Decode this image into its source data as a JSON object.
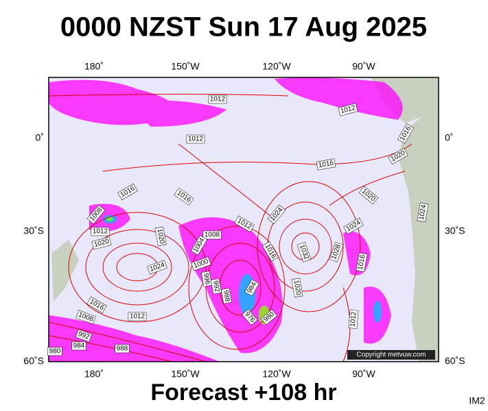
{
  "header": {
    "title": "0000 NZST Sun 17 Aug 2025"
  },
  "footer": {
    "forecast": "Forecast +108 hr",
    "image_id": "IM2"
  },
  "map": {
    "top_longitudes": [
      "180˚",
      "150˚W",
      "120˚W",
      "90˚W"
    ],
    "bottom_longitudes": [
      "180˚",
      "150˚W",
      "120˚W",
      "90˚W"
    ],
    "left_latitudes": [
      "0˚",
      "30˚S",
      "60˚S"
    ],
    "right_latitudes": [
      "0˚",
      "30˚S",
      "60˚S"
    ],
    "isobar_labels": [
      "1012",
      "1012",
      "1016",
      "1012",
      "1020",
      "1016",
      "1016",
      "1016",
      "1020",
      "1008",
      "1024",
      "1012",
      "1024",
      "1012",
      "1008",
      "1020",
      "1004",
      "1020",
      "1016",
      "1032",
      "1028",
      "1000",
      "1016",
      "1024",
      "996",
      "992",
      "988",
      "984",
      "1020",
      "1016",
      "1008",
      "1012",
      "976",
      "980",
      "1012",
      "992",
      "984",
      "988",
      "980",
      "1024"
    ],
    "copyright": "Copyright metvuw.com"
  }
}
